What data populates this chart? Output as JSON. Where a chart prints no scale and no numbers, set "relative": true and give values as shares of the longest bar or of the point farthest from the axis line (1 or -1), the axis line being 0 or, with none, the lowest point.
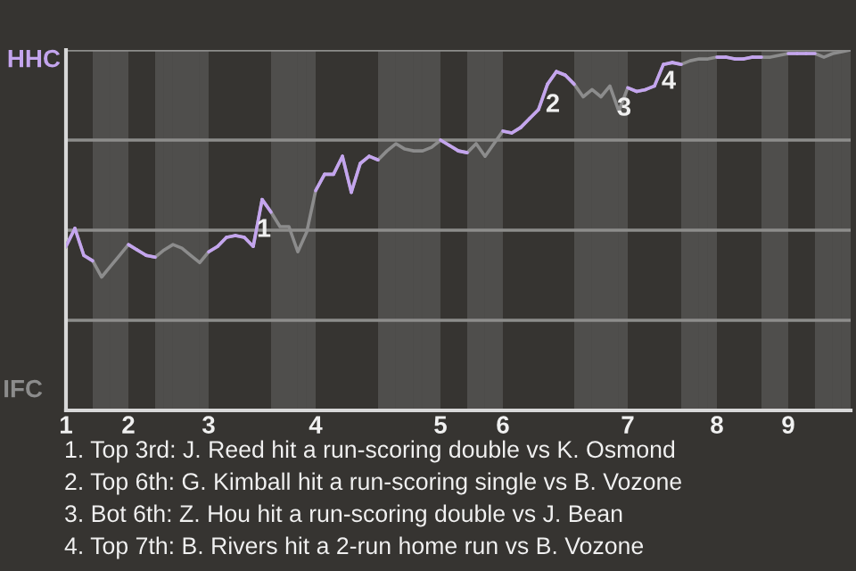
{
  "chart_data": {
    "type": "line",
    "relative": true,
    "categories": [
      "1",
      null,
      null,
      null,
      null,
      null,
      null,
      "2",
      null,
      null,
      null,
      null,
      null,
      null,
      null,
      null,
      "3",
      null,
      null,
      null,
      null,
      null,
      null,
      null,
      null,
      null,
      null,
      null,
      "4",
      null,
      null,
      null,
      null,
      null,
      null,
      null,
      null,
      null,
      null,
      null,
      null,
      null,
      "5",
      null,
      null,
      null,
      null,
      null,
      null,
      "6",
      null,
      null,
      null,
      null,
      null,
      null,
      null,
      null,
      null,
      null,
      null,
      null,
      null,
      "7",
      null,
      null,
      null,
      null,
      null,
      null,
      null,
      null,
      null,
      "8",
      null,
      null,
      null,
      null,
      null,
      null,
      null,
      "9",
      null,
      null,
      null,
      null,
      null,
      null,
      null
    ],
    "series": [
      {
        "color": "#8c8c8c",
        "values": [
          0.455,
          0.505,
          0.43,
          0.415,
          0.37,
          0.4,
          0.43,
          0.46,
          0.445,
          0.43,
          0.425,
          0.445,
          0.46,
          0.45,
          0.43,
          0.41,
          0.44,
          0.455,
          0.48,
          0.485,
          0.48,
          0.455,
          0.585,
          0.55,
          0.51,
          0.51,
          0.44,
          0.495,
          0.61,
          0.655,
          0.655,
          0.705,
          0.605,
          0.685,
          0.705,
          0.695,
          0.72,
          0.74,
          0.725,
          0.72,
          0.72,
          0.73,
          0.75,
          0.735,
          0.72,
          0.715,
          0.74,
          0.705,
          0.74,
          0.775,
          0.77,
          0.785,
          0.81,
          0.835,
          0.905,
          0.94,
          0.93,
          0.905,
          0.87,
          0.89,
          0.87,
          0.9,
          0.83,
          0.895,
          0.885,
          0.89,
          0.9,
          0.96,
          0.965,
          0.96,
          0.97,
          0.975,
          0.975,
          0.98,
          0.98,
          0.975,
          0.975,
          0.98,
          0.98,
          0.98,
          0.985,
          0.99,
          0.99,
          0.99,
          0.99,
          0.98,
          0.99,
          0.995,
          1
        ],
        "colors": [
          "#c4a5ee",
          "#c4a5ee",
          "#c4a5ee",
          "#8c8c8c",
          "#8c8c8c",
          "#8c8c8c",
          "#8c8c8c",
          "#c4a5ee",
          "#c4a5ee",
          "#c4a5ee",
          "#8c8c8c",
          "#8c8c8c",
          "#8c8c8c",
          "#8c8c8c",
          "#8c8c8c",
          "#8c8c8c",
          "#c4a5ee",
          "#c4a5ee",
          "#c4a5ee",
          "#c4a5ee",
          "#c4a5ee",
          "#c4a5ee",
          "#c4a5ee",
          "#8c8c8c",
          "#8c8c8c",
          "#8c8c8c",
          "#8c8c8c",
          "#8c8c8c",
          "#c4a5ee",
          "#c4a5ee",
          "#c4a5ee",
          "#c4a5ee",
          "#c4a5ee",
          "#c4a5ee",
          "#c4a5ee",
          "#8c8c8c",
          "#8c8c8c",
          "#8c8c8c",
          "#8c8c8c",
          "#8c8c8c",
          "#8c8c8c",
          "#8c8c8c",
          "#c4a5ee",
          "#c4a5ee",
          "#c4a5ee",
          "#8c8c8c",
          "#8c8c8c",
          "#8c8c8c",
          "#8c8c8c",
          "#c4a5ee",
          "#c4a5ee",
          "#c4a5ee",
          "#c4a5ee",
          "#c4a5ee",
          "#c4a5ee",
          "#c4a5ee",
          "#c4a5ee",
          "#8c8c8c",
          "#8c8c8c",
          "#8c8c8c",
          "#8c8c8c",
          "#8c8c8c",
          "#8c8c8c",
          "#c4a5ee",
          "#c4a5ee",
          "#c4a5ee",
          "#c4a5ee",
          "#c4a5ee",
          "#c4a5ee",
          "#8c8c8c",
          "#8c8c8c",
          "#8c8c8c",
          "#8c8c8c",
          "#c4a5ee",
          "#c4a5ee",
          "#c4a5ee",
          "#c4a5ee",
          "#c4a5ee",
          "#8c8c8c",
          "#8c8c8c",
          "#8c8c8c",
          "#c4a5ee",
          "#c4a5ee",
          "#c4a5ee",
          "#8c8c8c",
          "#8c8c8c",
          "#8c8c8c",
          "#8c8c8c",
          "#8c8c8c"
        ]
      }
    ],
    "marker": "none",
    "line_style": "solid",
    "ref_lines": [
      {
        "axis": "y",
        "value": 0.25,
        "color": "#8d8d8b"
      },
      {
        "axis": "y",
        "value": 0.5,
        "color": "#8d8d8b"
      },
      {
        "axis": "y",
        "value": 0.75,
        "color": "#8d8d8b"
      },
      {
        "axis": "y",
        "value": 1,
        "color": "#8d8d8b"
      }
    ],
    "annotations": [
      "HHC",
      "IFC",
      "1",
      "2",
      "3",
      "4",
      "1. Top 3rd: J. Reed hit a run-scoring double vs K. Osmond",
      "2. Top 6th: G. Kimball hit a run-scoring single vs B. Vozone",
      "3. Bot 6th: Z. Hou hit a run-scoring double vs J. Bean",
      "4. Top 7th: B. Rivers hit a 2-run home run vs B. Vozone"
    ]
  }
}
